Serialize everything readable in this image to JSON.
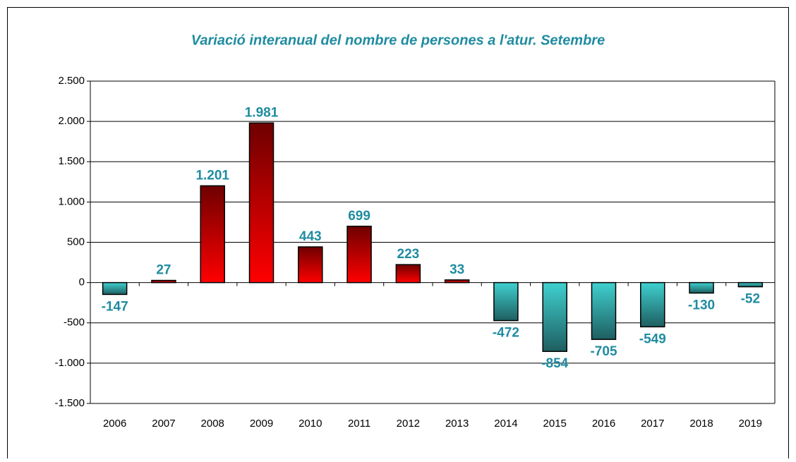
{
  "chart_data": {
    "type": "bar",
    "title": "Variació interanual del nombre de persones a l'atur. Setembre",
    "categories": [
      "2006",
      "2007",
      "2008",
      "2009",
      "2010",
      "2011",
      "2012",
      "2013",
      "2014",
      "2015",
      "2016",
      "2017",
      "2018",
      "2019"
    ],
    "values": [
      -147,
      27,
      1201,
      1981,
      443,
      699,
      223,
      33,
      -472,
      -854,
      -705,
      -549,
      -130,
      -52
    ],
    "value_labels": [
      "-147",
      "27",
      "1.201",
      "1.981",
      "443",
      "699",
      "223",
      "33",
      "-472",
      "-854",
      "-705",
      "-549",
      "-130",
      "-52"
    ],
    "ylim": [
      -1500,
      2500
    ],
    "yticks": [
      {
        "value": -1500,
        "label": "-1.500"
      },
      {
        "value": -1000,
        "label": "-1.000"
      },
      -500,
      0,
      500,
      {
        "value": 1000,
        "label": "1.000"
      },
      {
        "value": 1500,
        "label": "1.500"
      },
      {
        "value": 2000,
        "label": "2.000"
      },
      {
        "value": 2500,
        "label": "2.500"
      }
    ],
    "grid": true,
    "colors": {
      "positive": [
        "#6e0000",
        "#ff0000"
      ],
      "negative": [
        "#40d0d0",
        "#1e5e60"
      ]
    }
  }
}
